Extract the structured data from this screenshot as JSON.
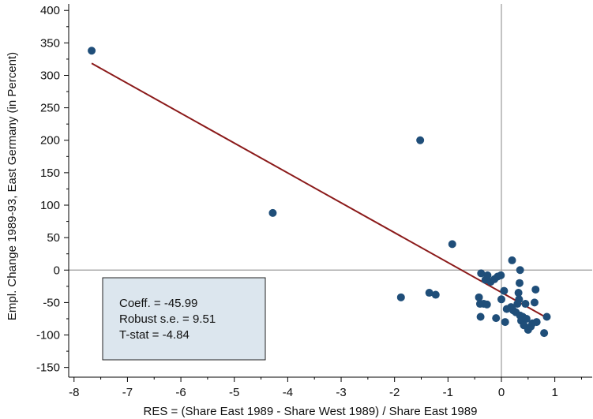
{
  "chart_data": {
    "type": "scatter",
    "xlabel": "RES = (Share East 1989 - Share West 1989) / Share East 1989",
    "ylabel": "Empl. Change 1989-93, East Germany (in Percent)",
    "xlim": [
      -8.1,
      1.7
    ],
    "ylim": [
      -165,
      410
    ],
    "x_ticks": [
      -8,
      -7,
      -6,
      -5,
      -4,
      -3,
      -2,
      -1,
      0,
      1
    ],
    "y_ticks": [
      400,
      350,
      300,
      250,
      200,
      150,
      100,
      50,
      0,
      -50,
      -100,
      -150
    ],
    "x_tick_labels": [
      "-8",
      "-7",
      "-6",
      "-5",
      "-4",
      "-3",
      "-2",
      "-1",
      "0",
      "1"
    ],
    "y_tick_labels": [
      "400",
      "350",
      "300",
      "250",
      "200",
      "150",
      "100",
      "50",
      "0",
      "-50",
      "-100",
      "-150"
    ],
    "reference_lines": {
      "x": 0,
      "y": 0
    },
    "points": [
      [
        -7.67,
        338
      ],
      [
        -4.28,
        88
      ],
      [
        -1.52,
        200
      ],
      [
        -0.92,
        40
      ],
      [
        -1.88,
        -42
      ],
      [
        -1.35,
        -35
      ],
      [
        -1.23,
        -38
      ],
      [
        -0.38,
        -5
      ],
      [
        -0.3,
        -15
      ],
      [
        -0.26,
        -8
      ],
      [
        -0.2,
        -18
      ],
      [
        -0.13,
        -14
      ],
      [
        -0.07,
        -10
      ],
      [
        -0.01,
        -8
      ],
      [
        -0.42,
        -42
      ],
      [
        -0.4,
        -52
      ],
      [
        -0.33,
        -52
      ],
      [
        -0.27,
        -53
      ],
      [
        -0.39,
        -72
      ],
      [
        -0.1,
        -74
      ],
      [
        0.0,
        -45
      ],
      [
        0.05,
        -32
      ],
      [
        0.07,
        -80
      ],
      [
        0.1,
        -60
      ],
      [
        0.18,
        -57
      ],
      [
        0.2,
        15
      ],
      [
        0.22,
        -62
      ],
      [
        0.27,
        -65
      ],
      [
        0.3,
        -52
      ],
      [
        0.32,
        -35
      ],
      [
        0.33,
        -45
      ],
      [
        0.34,
        -20
      ],
      [
        0.35,
        0
      ],
      [
        0.35,
        -70
      ],
      [
        0.37,
        -78
      ],
      [
        0.4,
        -72
      ],
      [
        0.42,
        -85
      ],
      [
        0.45,
        -52
      ],
      [
        0.47,
        -75
      ],
      [
        0.5,
        -92
      ],
      [
        0.55,
        -87
      ],
      [
        0.58,
        -82
      ],
      [
        0.62,
        -50
      ],
      [
        0.64,
        -30
      ],
      [
        0.66,
        -80
      ],
      [
        0.8,
        -97
      ],
      [
        0.85,
        -72
      ]
    ],
    "fit_line": {
      "x": [
        -7.67,
        0.85
      ],
      "y": [
        318.5,
        -73.5
      ]
    },
    "stats": {
      "coeff": "Coeff. = -45.99",
      "robust_se": "Robust s.e. = 9.51",
      "t_stat": "T-stat = -4.84"
    },
    "colors": {
      "point": "#1f4e79",
      "fit_line": "#8b1a1a",
      "reference": "#9a9a9a",
      "stats_box_fill": "#dce6ee",
      "axis": "#000000"
    }
  }
}
